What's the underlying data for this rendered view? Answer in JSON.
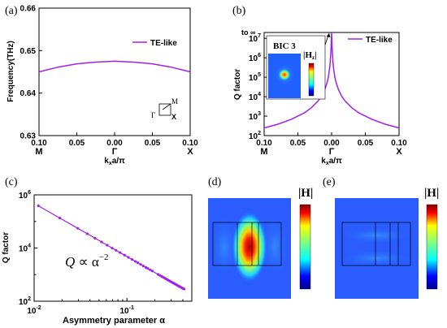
{
  "chart_data": [
    {
      "id": "a",
      "panel_label": "(a)",
      "type": "line",
      "xlabel_main": "k",
      "xlabel_sub": "x",
      "xlabel_rest": "a/π",
      "ylabel": "Frequency(THz)",
      "xlim": [
        -0.1,
        0.1
      ],
      "ylim": [
        0.63,
        0.66
      ],
      "x_ticks": [
        -0.1,
        -0.05,
        0.0,
        0.05,
        0.1
      ],
      "x_tick_labels": [
        "0.10",
        "0.05",
        "0.00",
        "0.05",
        "0.10"
      ],
      "y_ticks": [
        0.63,
        0.64,
        0.65,
        0.66
      ],
      "y_tick_labels": [
        "0.63",
        "0.64",
        "0.65",
        "0.66"
      ],
      "sym_labels": [
        "M",
        "Γ",
        "X"
      ],
      "series": [
        {
          "name": "TE-like",
          "color": "#a020f0",
          "x": [
            -0.1,
            -0.075,
            -0.05,
            -0.025,
            0.0,
            0.025,
            0.05,
            0.075,
            0.1
          ],
          "y": [
            0.645,
            0.6461,
            0.6469,
            0.6473,
            0.6475,
            0.6473,
            0.6469,
            0.6461,
            0.645
          ]
        }
      ],
      "legend_position": "top-right",
      "inset_bz_labels": [
        "M",
        "Γ",
        "X"
      ]
    },
    {
      "id": "b",
      "panel_label": "(b)",
      "type": "line",
      "xlabel_main": "k",
      "xlabel_sub": "x",
      "xlabel_rest": "a/π",
      "ylabel": "Q factor",
      "y_scale": "log",
      "xlim": [
        -0.1,
        0.1
      ],
      "ylim": [
        100,
        20000000
      ],
      "x_ticks": [
        -0.1,
        -0.05,
        0.0,
        0.05,
        0.1
      ],
      "x_tick_labels": [
        "0.10",
        "0.05",
        "0.00",
        "0.05",
        "0.10"
      ],
      "y_ticks": [
        100,
        1000,
        10000,
        100000,
        1000000,
        10000000
      ],
      "y_tick_mantissa": "10",
      "y_tick_exponents": [
        "2",
        "3",
        "4",
        "5",
        "6",
        "7"
      ],
      "y_top_label": "to ∞",
      "sym_labels": [
        "M",
        "Γ",
        "X"
      ],
      "series": [
        {
          "name": "TE-like",
          "color": "#a020f0",
          "x": [
            -0.1,
            -0.08,
            -0.06,
            -0.04,
            -0.03,
            -0.02,
            -0.015,
            -0.01,
            -0.007,
            -0.005,
            -0.003,
            -0.002,
            -0.001,
            0.0,
            0.001,
            0.002,
            0.003,
            0.005,
            0.007,
            0.01,
            0.015,
            0.02,
            0.03,
            0.04,
            0.06,
            0.08,
            0.1
          ],
          "y": [
            250,
            380,
            680,
            1500,
            2700,
            6000,
            10500,
            24000,
            49000,
            95000,
            270000,
            600000,
            2400000,
            20000000,
            2400000,
            600000,
            270000,
            95000,
            49000,
            24000,
            10500,
            6000,
            2700,
            1500,
            680,
            380,
            250
          ]
        }
      ],
      "legend_position": "top-right",
      "inset_title": "BIC 3",
      "inset_field_label": "H",
      "inset_field_sub": "z"
    },
    {
      "id": "c",
      "panel_label": "(c)",
      "type": "scatter",
      "xlabel": "Asymmetry parameter α",
      "ylabel": "Q factor",
      "x_scale": "log",
      "y_scale": "log",
      "xlim": [
        0.01,
        0.5
      ],
      "ylim": [
        100,
        1000000
      ],
      "x_ticks": [
        0.01,
        0.1
      ],
      "x_tick_mantissa": "10",
      "x_tick_exponents": [
        "-2",
        "-1"
      ],
      "y_ticks": [
        100,
        10000,
        1000000
      ],
      "y_tick_mantissa": "10",
      "y_tick_exponents": [
        "2",
        "4",
        "6"
      ],
      "series": [
        {
          "name": "",
          "color": "#a020f0",
          "x": [
            0.0111,
            0.0189,
            0.0295,
            0.0374,
            0.0452,
            0.0532,
            0.0613,
            0.0693,
            0.0761,
            0.0843,
            0.094,
            0.1037,
            0.1135,
            0.1232,
            0.1309,
            0.1405,
            0.1503,
            0.1601,
            0.1679,
            0.1776,
            0.1874,
            0.2167,
            0.2265,
            0.2363,
            0.2461,
            0.2559,
            0.2657,
            0.2755,
            0.2853,
            0.2951,
            0.3049,
            0.3148,
            0.3246,
            0.3346,
            0.3443,
            0.3541,
            0.3641,
            0.3737,
            0.3835,
            0.3934,
            0.4032,
            0.4131
          ],
          "y": [
            388000,
            134000,
            55300,
            34400,
            23500,
            17000,
            12800,
            9970,
            8270,
            6730,
            5420,
            4450,
            3720,
            3150,
            2790,
            2420,
            2120,
            1870,
            1700,
            1520,
            1370,
            1020,
            937,
            860,
            794,
            734,
            681,
            633,
            590,
            552,
            517,
            486,
            457,
            431,
            408,
            386,
            365,
            347,
            330,
            314,
            300,
            287
          ]
        }
      ],
      "annotation_q": "Q",
      "annotation_rest": " ∝ α",
      "annotation_exp": "−2"
    },
    {
      "id": "d",
      "panel_label": "(d)",
      "type": "heatmap",
      "colorbar_label": "|H|"
    },
    {
      "id": "e",
      "panel_label": "(e)",
      "type": "heatmap",
      "colorbar_label": "|H|"
    }
  ]
}
